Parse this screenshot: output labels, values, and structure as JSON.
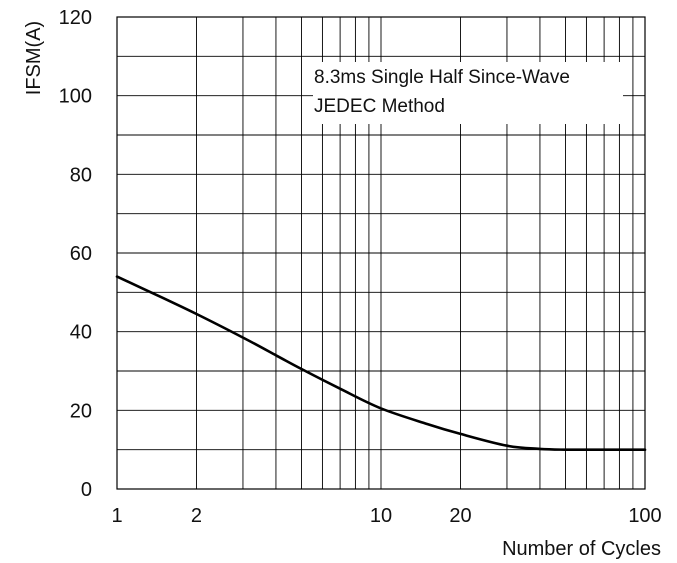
{
  "chart_data": {
    "type": "line",
    "ylabel": "IFSM(A)",
    "xlabel": "Number of Cycles",
    "xscale": "log",
    "xlim": [
      1,
      100
    ],
    "ylim": [
      0,
      120
    ],
    "x_ticks": [
      1,
      2,
      10,
      20,
      100
    ],
    "y_ticks": [
      0,
      20,
      40,
      60,
      80,
      100,
      120
    ],
    "y_grid_step": 10,
    "grid": true,
    "annotation": [
      "8.3ms Single Half Since-Wave",
      "JEDEC Method"
    ],
    "series": [
      {
        "x": [
          1,
          1.5,
          2,
          3,
          4,
          5,
          7,
          10,
          15,
          20,
          30,
          40,
          50,
          70,
          100
        ],
        "y": [
          54,
          48.5,
          44.5,
          38.5,
          34,
          30.5,
          25.5,
          20.5,
          16.5,
          14,
          11,
          10.2,
          10,
          10,
          10
        ]
      }
    ]
  }
}
